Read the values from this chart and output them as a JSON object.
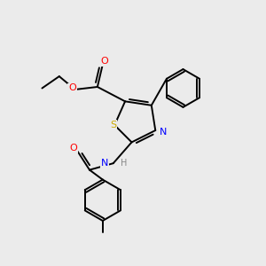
{
  "background_color": "#ebebeb",
  "bond_color": "#000000",
  "atom_colors": {
    "O": "#ff0000",
    "N": "#0000ff",
    "S": "#ccaa00",
    "H": "#888888",
    "C": "#000000"
  },
  "figsize": [
    3.0,
    3.0
  ],
  "dpi": 100,
  "xlim": [
    0,
    10
  ],
  "ylim": [
    0,
    10
  ]
}
